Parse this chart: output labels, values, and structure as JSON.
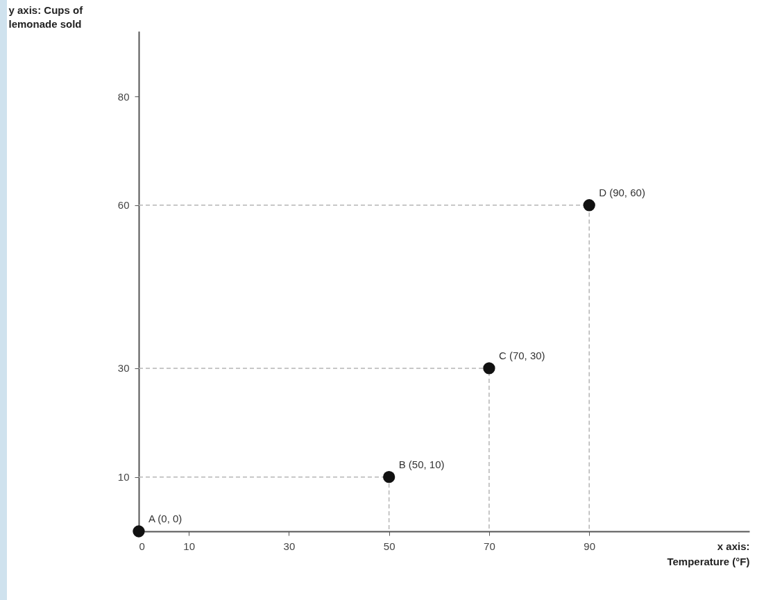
{
  "chart_data": {
    "type": "scatter",
    "xlabel": "x axis: Temperature (°F)",
    "ylabel": "y axis: Cups of lemonade sold",
    "x": [
      0,
      50,
      70,
      90
    ],
    "xlim": [
      0,
      122
    ],
    "xticks": [
      0,
      10,
      30,
      50,
      70,
      90
    ],
    "ylim": [
      0,
      92
    ],
    "yticks": [
      10,
      30,
      60,
      80
    ],
    "grid": false,
    "marker": "circle",
    "series": [
      {
        "type": "line",
        "color": "#b5b5b5",
        "line_style": "dashed",
        "marker": "none",
        "x": [
          0,
          50,
          50
        ],
        "values": [
          10,
          10,
          0
        ]
      },
      {
        "type": "line",
        "color": "#b5b5b5",
        "line_style": "dashed",
        "marker": "none",
        "x": [
          0,
          70,
          70
        ],
        "values": [
          30,
          30,
          0
        ]
      },
      {
        "type": "line",
        "color": "#b5b5b5",
        "line_style": "dashed",
        "marker": "none",
        "x": [
          0,
          90,
          90
        ],
        "values": [
          60,
          60,
          0
        ]
      },
      {
        "type": "scatter",
        "color": "#111111",
        "values": [
          0,
          10,
          30,
          60
        ]
      }
    ],
    "annotations": [
      {
        "text": "A (0, 0)",
        "x": 0,
        "y": 0
      },
      {
        "text": "B (50, 10)",
        "x": 50,
        "y": 10
      },
      {
        "text": "C (70, 30)",
        "x": 70,
        "y": 30
      },
      {
        "text": "D (90, 60)",
        "x": 90,
        "y": 60
      }
    ]
  }
}
